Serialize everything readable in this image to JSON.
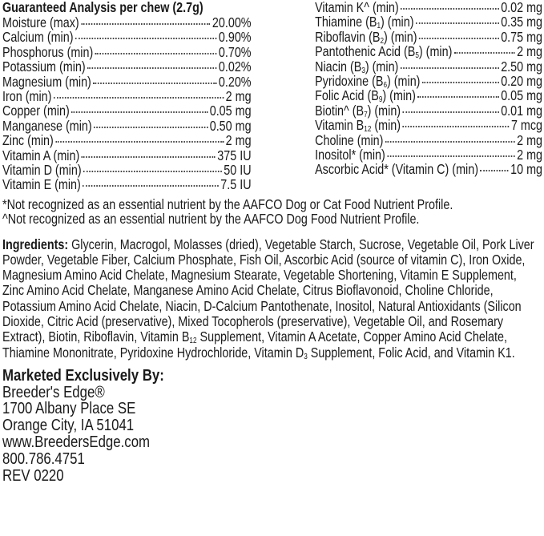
{
  "analysis": {
    "title": "Guaranteed Analysis per chew (2.7g)",
    "left": [
      {
        "pre": "Moisture (max)",
        "sub": "",
        "post": "",
        "value": "20.00%"
      },
      {
        "pre": "Calcium (min)",
        "sub": "",
        "post": "",
        "value": "0.90%"
      },
      {
        "pre": "Phosphorus (min)",
        "sub": "",
        "post": "",
        "value": "0.70%"
      },
      {
        "pre": "Potassium (min)",
        "sub": "",
        "post": "",
        "value": "0.02%"
      },
      {
        "pre": "Magnesium (min)",
        "sub": "",
        "post": "",
        "value": "0.20%"
      },
      {
        "pre": "Iron (min)",
        "sub": "",
        "post": "",
        "value": "2 mg"
      },
      {
        "pre": "Copper (min)",
        "sub": "",
        "post": "",
        "value": "0.05 mg"
      },
      {
        "pre": "Manganese (min)",
        "sub": "",
        "post": "",
        "value": "0.50 mg"
      },
      {
        "pre": "Zinc (min)",
        "sub": "",
        "post": "",
        "value": "2 mg"
      },
      {
        "pre": "Vitamin A (min)",
        "sub": "",
        "post": "",
        "value": "375 IU"
      },
      {
        "pre": "Vitamin D (min)",
        "sub": "",
        "post": "",
        "value": "50 IU"
      },
      {
        "pre": "Vitamin E (min)",
        "sub": "",
        "post": "",
        "value": "7.5 IU"
      }
    ],
    "right": [
      {
        "pre": "Vitamin K^ (min)",
        "sub": "",
        "post": "",
        "value": "0.02 mg"
      },
      {
        "pre": "Thiamine (B",
        "sub": "1",
        "post": ") (min)",
        "value": "0.35 mg"
      },
      {
        "pre": "Riboflavin (B",
        "sub": "2",
        "post": ") (min)",
        "value": "0.75 mg"
      },
      {
        "pre": "Pantothenic Acid (B",
        "sub": "5",
        "post": ") (min)",
        "value": "2 mg"
      },
      {
        "pre": "Niacin (B",
        "sub": "3",
        "post": ") (min)",
        "value": "2.50 mg"
      },
      {
        "pre": "Pyridoxine (B",
        "sub": "6",
        "post": ") (min)",
        "value": "0.20 mg"
      },
      {
        "pre": "Folic Acid (B",
        "sub": "9",
        "post": ") (min)",
        "value": "0.05 mg"
      },
      {
        "pre": "Biotin^ (B",
        "sub": "7",
        "post": ") (min)",
        "value": "0.01 mg"
      },
      {
        "pre": "Vitamin B",
        "sub": "12",
        "post": " (min)",
        "value": "7 mcg"
      },
      {
        "pre": "Choline (min)",
        "sub": "",
        "post": "",
        "value": "2 mg"
      },
      {
        "pre": "Inositol* (min)",
        "sub": "",
        "post": "",
        "value": "2 mg"
      },
      {
        "pre": "Ascorbic Acid* (Vitamin C) (min)",
        "sub": "",
        "post": "",
        "value": "10 mg"
      }
    ]
  },
  "notes": [
    "*Not recognized as an essential nutrient by the AAFCO Dog or Cat Food Nutrient Profile.",
    "^Not recognized as an essential nutrient by the AAFCO Dog Food Nutrient Profile."
  ],
  "ingredients": {
    "label": "Ingredients:",
    "lines": [
      {
        "pre": " Glycerin, Macrogol, Molasses (dried), Vegetable Starch, Sucrose, Vegetable Oil, Pork Liver",
        "sub": "",
        "post": ""
      },
      {
        "pre": "Powder, Vegetable Fiber, Calcium Phosphate, Fish Oil, Ascorbic Acid (source of vitamin C), Iron Oxide,",
        "sub": "",
        "post": ""
      },
      {
        "pre": "Magnesium Amino Acid Chelate, Magnesium Stearate, Vegetable Shortening, Vitamin E Supplement,",
        "sub": "",
        "post": ""
      },
      {
        "pre": "Zinc Amino Acid Chelate, Manganese Amino Acid Chelate, Citrus Bioflavonoid, Choline Chloride,",
        "sub": "",
        "post": ""
      },
      {
        "pre": "Potassium Amino Acid Chelate, Niacin, D-Calcium Pantothenate, Inositol, Natural Antioxidants (Silicon",
        "sub": "",
        "post": ""
      },
      {
        "pre": "Dioxide, Citric Acid (preservative), Mixed Tocopherols (preservative), Vegetable Oil, and Rosemary",
        "sub": "",
        "post": ""
      },
      {
        "pre": "Extract), Biotin, Riboflavin, Vitamin B",
        "sub": "12",
        "post": " Supplement, Vitamin A Acetate, Copper Amino Acid Chelate,"
      },
      {
        "pre": "Thiamine Mononitrate, Pyridoxine Hydrochloride, Vitamin D",
        "sub": "3",
        "post": " Supplement, Folic Acid, and Vitamin K1."
      }
    ]
  },
  "marketer": {
    "heading": "Marketed Exclusively By:",
    "name": "Breeder's Edge®",
    "address1": "1700 Albany Place SE",
    "address2": "Orange City, IA 51041",
    "website": "www.BreedersEdge.com",
    "phone": "800.786.4751",
    "revision": "REV 0220"
  }
}
